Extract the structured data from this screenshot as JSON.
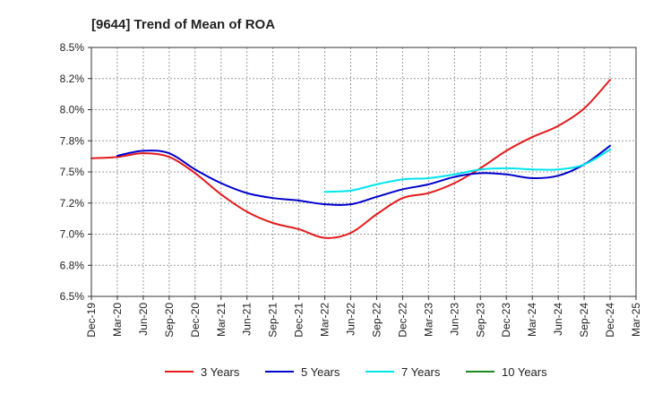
{
  "chart_data": {
    "type": "line",
    "title": "[9644]  Trend of Mean of ROA",
    "xlabel": "",
    "ylabel": "",
    "ylim": [
      6.5,
      8.5
    ],
    "y_ticks": [
      "8.5%",
      "8.2%",
      "8.0%",
      "7.8%",
      "7.5%",
      "7.2%",
      "7.0%",
      "6.8%",
      "6.5%"
    ],
    "y_tick_values": [
      8.5,
      8.25,
      8.0,
      7.75,
      7.5,
      7.25,
      7.0,
      6.75,
      6.5
    ],
    "categories": [
      "Dec-19",
      "Mar-20",
      "Jun-20",
      "Sep-20",
      "Dec-20",
      "Mar-21",
      "Jun-21",
      "Sep-21",
      "Dec-21",
      "Mar-22",
      "Jun-22",
      "Sep-22",
      "Dec-22",
      "Mar-23",
      "Jun-23",
      "Sep-23",
      "Dec-23",
      "Mar-24",
      "Jun-24",
      "Sep-24",
      "Dec-24",
      "Mar-25"
    ],
    "grid": true,
    "legend_position": "bottom",
    "series": [
      {
        "name": "3 Years",
        "color": "#e31a1c",
        "values": [
          7.61,
          7.62,
          7.65,
          7.62,
          7.49,
          7.32,
          7.18,
          7.09,
          7.04,
          6.97,
          7.01,
          7.16,
          7.29,
          7.33,
          7.41,
          7.53,
          7.67,
          7.78,
          7.87,
          8.01,
          8.24,
          null
        ]
      },
      {
        "name": "5 Years",
        "color": "#0000cc",
        "values": [
          null,
          7.63,
          7.67,
          7.65,
          7.52,
          7.41,
          7.33,
          7.29,
          7.27,
          7.24,
          7.24,
          7.3,
          7.36,
          7.4,
          7.46,
          7.49,
          7.48,
          7.45,
          7.47,
          7.56,
          7.71,
          null
        ]
      },
      {
        "name": "7 Years",
        "color": "#00e5ee",
        "values": [
          null,
          null,
          null,
          null,
          null,
          null,
          null,
          null,
          null,
          7.34,
          7.35,
          7.4,
          7.44,
          7.45,
          7.48,
          7.52,
          7.53,
          7.52,
          7.52,
          7.56,
          7.68,
          null
        ]
      },
      {
        "name": "10 Years",
        "color": "#1a8a1a",
        "values": [
          null,
          null,
          null,
          null,
          null,
          null,
          null,
          null,
          null,
          null,
          null,
          null,
          null,
          null,
          null,
          null,
          null,
          null,
          null,
          null,
          null,
          null
        ]
      }
    ]
  }
}
